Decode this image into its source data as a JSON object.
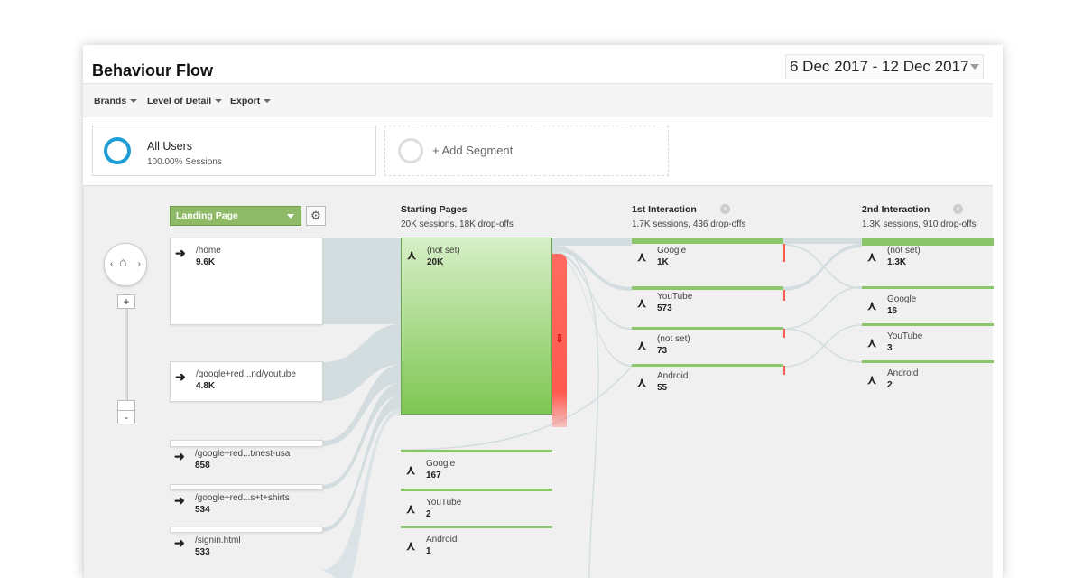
{
  "header": {
    "title": "Behaviour Flow",
    "date_range": "6 Dec 2017 - 12 Dec 2017"
  },
  "toolbar": {
    "brands": "Brands",
    "level_of_detail": "Level of Detail",
    "export": "Export"
  },
  "segments": {
    "all_users": "All Users",
    "all_users_pct": "100.00% Sessions",
    "add_segment": "+ Add Segment"
  },
  "flow": {
    "landing_page_select": "Landing Page",
    "zoom_in": "+",
    "zoom_out": "-",
    "columns": [
      {
        "title": "Starting Pages",
        "subtitle": "20K sessions, 18K drop-offs"
      },
      {
        "title": "1st Interaction",
        "subtitle": "1.7K sessions, 436 drop-offs"
      },
      {
        "title": "2nd Interaction",
        "subtitle": "1.3K sessions, 910 drop-offs"
      }
    ],
    "landing_pages": [
      {
        "label": "/home",
        "value": "9.6K"
      },
      {
        "label": "/google+red...nd/youtube",
        "value": "4.8K"
      },
      {
        "label": "/google+red...t/nest-usa",
        "value": "858"
      },
      {
        "label": "/google+red...s+t+shirts",
        "value": "534"
      },
      {
        "label": "/signin.html",
        "value": "533"
      }
    ],
    "starting_pages": [
      {
        "label": "(not set)",
        "value": "20K"
      },
      {
        "label": "Google",
        "value": "167"
      },
      {
        "label": "YouTube",
        "value": "2"
      },
      {
        "label": "Android",
        "value": "1"
      }
    ],
    "first_interaction": [
      {
        "label": "Google",
        "value": "1K"
      },
      {
        "label": "YouTube",
        "value": "573"
      },
      {
        "label": "(not set)",
        "value": "73"
      },
      {
        "label": "Android",
        "value": "55"
      }
    ],
    "second_interaction": [
      {
        "label": "(not set)",
        "value": "1.3K"
      },
      {
        "label": "Google",
        "value": "16"
      },
      {
        "label": "YouTube",
        "value": "3"
      },
      {
        "label": "Android",
        "value": "2"
      }
    ]
  },
  "colors": {
    "node_green": "#7fc653",
    "dropoff_red": "#ff5a50",
    "segment_blue": "#1e9dd6",
    "link_gray": "#d3dde0"
  }
}
